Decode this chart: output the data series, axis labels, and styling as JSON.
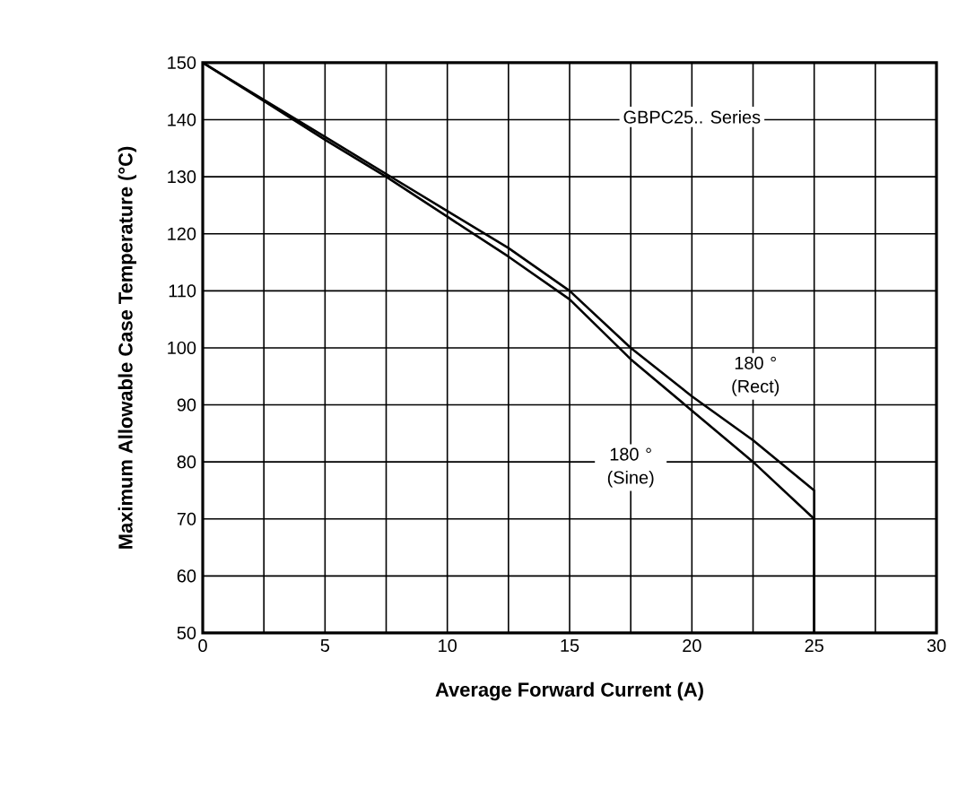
{
  "chart_data": {
    "type": "line",
    "xlabel": "Average Forward Current (A)",
    "ylabel": "Maximum Allowable Case Temperature (°C)",
    "annotations": [
      "GBPC25.. Series"
    ],
    "xlim": [
      0,
      30
    ],
    "ylim": [
      50,
      150
    ],
    "xticks": [
      0,
      {
        "value": 2.5,
        "label": null
      },
      5,
      {
        "value": 7.5,
        "label": null
      },
      10,
      {
        "value": 12.5,
        "label": null
      },
      15,
      {
        "value": 17.5,
        "label": null
      },
      20,
      {
        "value": 22.5,
        "label": null
      },
      25,
      {
        "value": 27.5,
        "label": null
      },
      30
    ],
    "yticks": [
      50,
      60,
      70,
      80,
      90,
      100,
      110,
      120,
      130,
      140,
      150
    ],
    "grid": true,
    "marker": "none",
    "line_style": "solid",
    "series": [
      {
        "name": "180 ° (Rect)",
        "color": "#000000",
        "x": [
          0,
          2.5,
          5,
          7.5,
          10,
          12.5,
          15,
          17.5,
          20,
          22.5,
          25,
          25
        ],
        "values": [
          150,
          143.5,
          137,
          130.5,
          124,
          117.5,
          110,
          100,
          91.5,
          83.8,
          75,
          50
        ]
      },
      {
        "name": "180 ° (Sine)",
        "color": "#000000",
        "x": [
          0,
          2.5,
          5,
          7.5,
          10,
          12.5,
          15,
          17.5,
          20,
          22.5,
          25,
          25
        ],
        "values": [
          150,
          143.3,
          136.5,
          130,
          123,
          116,
          108.5,
          98,
          89,
          80,
          70,
          50
        ]
      }
    ]
  }
}
